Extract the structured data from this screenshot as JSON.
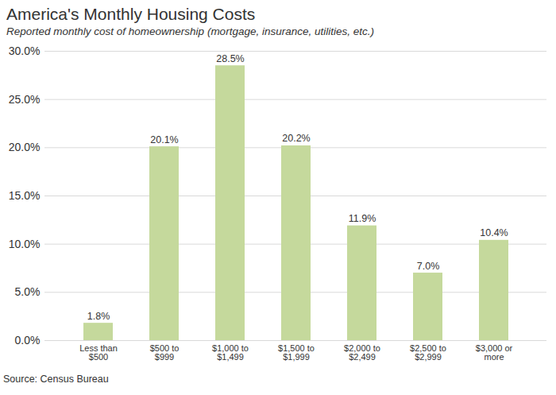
{
  "chart_data": {
    "type": "bar",
    "title": "America's Monthly Housing Costs",
    "subtitle": "Reported monthly cost of homeownership (mortgage, insurance, utilities, etc.)",
    "caption": "Source: Census Bureau",
    "categories": [
      "Less than $500",
      "$500 to $999",
      "$1,000 to $1,499",
      "$1,500 to $1,999",
      "$2,000 to $2,499",
      "$2,500 to $2,999",
      "$3,000 or more"
    ],
    "values": [
      1.8,
      20.1,
      28.5,
      20.2,
      11.9,
      7.0,
      10.4
    ],
    "value_labels": [
      "1.8%",
      "20.1%",
      "28.5%",
      "20.2%",
      "11.9%",
      "7.0%",
      "10.4%"
    ],
    "data_labels": true,
    "color": "#c5d99c",
    "ylim": [
      0,
      30
    ],
    "yticks": [
      {
        "value": 0,
        "label": "0.0%"
      },
      {
        "value": 5,
        "label": "5.0%"
      },
      {
        "value": 10,
        "label": "10.0%"
      },
      {
        "value": 15,
        "label": "15.0%"
      },
      {
        "value": 20,
        "label": "20.0%"
      },
      {
        "value": 25,
        "label": "25.0%"
      },
      {
        "value": 30,
        "label": "30.0%"
      }
    ],
    "grid": true
  }
}
